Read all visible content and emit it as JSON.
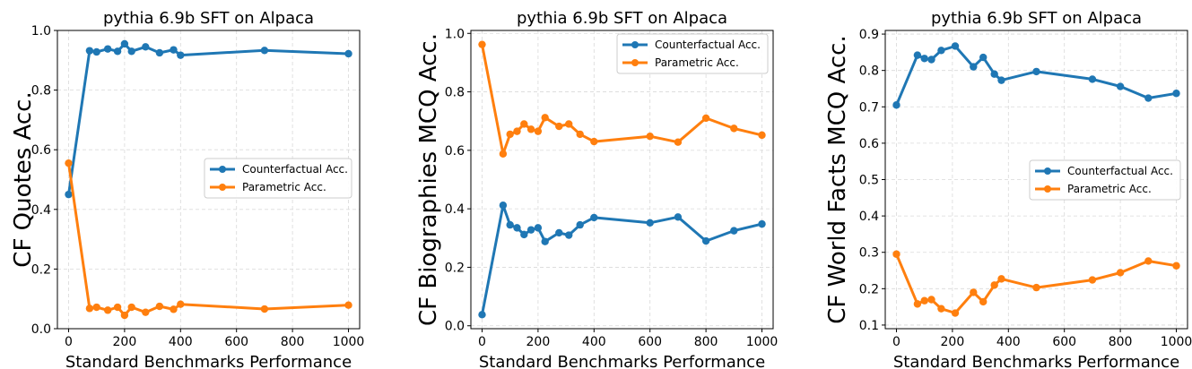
{
  "colors": {
    "series_a": "#1f77b4",
    "series_b": "#ff7f0e"
  },
  "chart_data": [
    {
      "type": "line",
      "title": "pythia 6.9b SFT on Alpaca",
      "xlabel": "Standard Benchmarks Performance",
      "ylabel": "CF Quotes Acc.",
      "xlim": [
        -40,
        1040
      ],
      "ylim": [
        0.0,
        1.0
      ],
      "xticks": [
        0,
        200,
        400,
        600,
        800,
        1000
      ],
      "xtick_labels": [
        "0",
        "200",
        "400",
        "600",
        "800",
        "1000"
      ],
      "yticks": [
        0.0,
        0.2,
        0.4,
        0.6,
        0.8,
        1.0
      ],
      "ytick_labels": [
        "0.0",
        "0.2",
        "0.4",
        "0.6",
        "0.8",
        "1.0"
      ],
      "grid": true,
      "legend_position": "center-right",
      "x": [
        0,
        75,
        100,
        140,
        175,
        200,
        225,
        275,
        325,
        375,
        400,
        700,
        1000
      ],
      "series": [
        {
          "name": "Counterfactual Acc.",
          "values": [
            0.45,
            0.932,
            0.928,
            0.938,
            0.93,
            0.955,
            0.93,
            0.945,
            0.925,
            0.935,
            0.917,
            0.933,
            0.922
          ]
        },
        {
          "name": "Parametric Acc.",
          "values": [
            0.555,
            0.068,
            0.072,
            0.062,
            0.072,
            0.045,
            0.072,
            0.055,
            0.075,
            0.065,
            0.082,
            0.066,
            0.079
          ]
        }
      ]
    },
    {
      "type": "line",
      "title": "pythia 6.9b SFT on Alpaca",
      "xlabel": "Standard Benchmarks Performance",
      "ylabel": "CF Biographies MCQ Acc.",
      "xlim": [
        -40,
        1040
      ],
      "ylim": [
        -0.01,
        1.01
      ],
      "xticks": [
        0,
        200,
        400,
        600,
        800,
        1000
      ],
      "xtick_labels": [
        "0",
        "200",
        "400",
        "600",
        "800",
        "1000"
      ],
      "yticks": [
        0.0,
        0.2,
        0.4,
        0.6,
        0.8,
        1.0
      ],
      "ytick_labels": [
        "0.0",
        "0.2",
        "0.4",
        "0.6",
        "0.8",
        "1.0"
      ],
      "grid": true,
      "legend_position": "top-right",
      "x": [
        0,
        75,
        100,
        125,
        150,
        175,
        200,
        225,
        275,
        310,
        350,
        400,
        600,
        700,
        800,
        900,
        1000
      ],
      "series": [
        {
          "name": "Counterfactual Acc.",
          "values": [
            0.038,
            0.412,
            0.345,
            0.335,
            0.312,
            0.328,
            0.335,
            0.288,
            0.318,
            0.31,
            0.345,
            0.37,
            0.352,
            0.372,
            0.29,
            0.325,
            0.348
          ]
        },
        {
          "name": "Parametric Acc.",
          "values": [
            0.962,
            0.588,
            0.655,
            0.665,
            0.69,
            0.672,
            0.665,
            0.712,
            0.682,
            0.69,
            0.655,
            0.63,
            0.648,
            0.628,
            0.71,
            0.675,
            0.652
          ]
        }
      ]
    },
    {
      "type": "line",
      "title": "pythia 6.9b SFT on Alpaca",
      "xlabel": "Standard Benchmarks Performance",
      "ylabel": "CF World Facts MCQ Acc.",
      "xlim": [
        -40,
        1040
      ],
      "ylim": [
        0.09,
        0.91
      ],
      "xticks": [
        0,
        200,
        400,
        600,
        800,
        1000
      ],
      "xtick_labels": [
        "0",
        "200",
        "400",
        "600",
        "800",
        "1000"
      ],
      "yticks": [
        0.1,
        0.2,
        0.3,
        0.4,
        0.5,
        0.6,
        0.7,
        0.8,
        0.9
      ],
      "ytick_labels": [
        "0.1",
        "0.2",
        "0.3",
        "0.4",
        "0.5",
        "0.6",
        "0.7",
        "0.8",
        "0.9"
      ],
      "grid": true,
      "legend_position": "center-right",
      "x": [
        0,
        75,
        100,
        125,
        160,
        210,
        275,
        310,
        350,
        375,
        500,
        700,
        800,
        900,
        1000
      ],
      "series": [
        {
          "name": "Counterfactual Acc.",
          "values": [
            0.705,
            0.842,
            0.833,
            0.83,
            0.855,
            0.867,
            0.81,
            0.836,
            0.79,
            0.773,
            0.797,
            0.776,
            0.756,
            0.724,
            0.737
          ]
        },
        {
          "name": "Parametric Acc.",
          "values": [
            0.295,
            0.158,
            0.167,
            0.17,
            0.145,
            0.133,
            0.19,
            0.164,
            0.21,
            0.227,
            0.203,
            0.224,
            0.244,
            0.276,
            0.263
          ]
        }
      ]
    }
  ]
}
